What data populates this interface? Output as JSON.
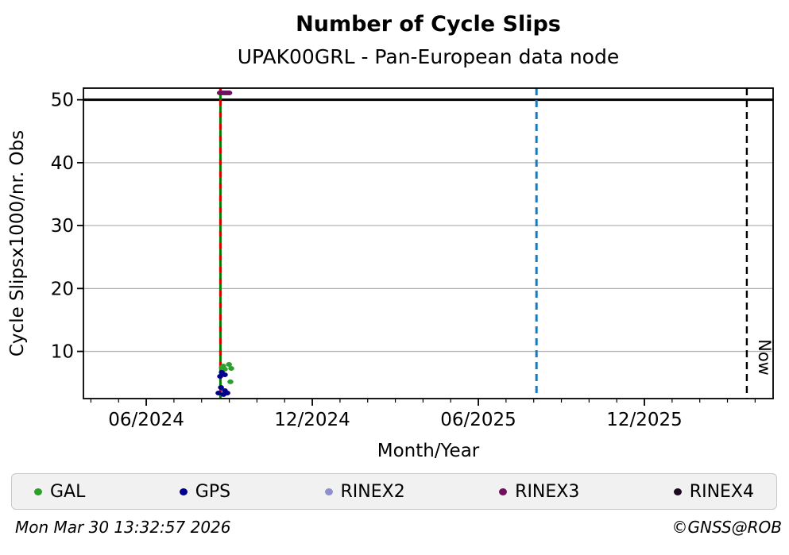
{
  "header": {
    "title": "Number of Cycle Slips",
    "subtitle": "UPAK00GRL - Pan-European data node"
  },
  "footer": {
    "timestamp": "Mon Mar 30 13:32:57 2026",
    "copyright": "©GNSS@ROB"
  },
  "chart_data": {
    "type": "scatter",
    "title": "Number of Cycle Slips",
    "subtitle": "UPAK00GRL - Pan-European data node",
    "xlabel": "Month/Year",
    "ylabel": "Cycle Slipsx1000/nr. Obs",
    "x_unit": "months relative to the 06/2024 tick (1 unit = 1 month)",
    "xlim": [
      -2.27,
      22.65
    ],
    "ylim": [
      2.5,
      51.85
    ],
    "yticks": [
      10,
      20,
      30,
      40,
      50
    ],
    "xticks": [
      {
        "t": 0,
        "label": "06/2024"
      },
      {
        "t": 6,
        "label": "12/2024"
      },
      {
        "t": 12,
        "label": "06/2025"
      },
      {
        "t": 18,
        "label": "12/2025"
      }
    ],
    "minor_xtick_step_months": 1,
    "grid": {
      "horizontal": true,
      "vertical": false,
      "color": "#b3b3b3"
    },
    "threshold_line": {
      "y": 50,
      "color": "#000000",
      "width": 3
    },
    "vlines": [
      {
        "name": "event-line",
        "t": 2.68,
        "date_approx": "late 08/2024",
        "base_color": "#007d00",
        "dash_color": "#d40000",
        "style": "solid-with-dash-overlay",
        "width": 3
      },
      {
        "name": "reference-line",
        "t": 14.1,
        "date_approx": "08/2025",
        "color": "#1f77b4",
        "style": "dashed",
        "width": 3
      },
      {
        "name": "now-line",
        "t": 21.7,
        "date_approx": "30/03/2026",
        "color": "#000000",
        "style": "dashed",
        "width": 2.4,
        "label": "Now"
      }
    ],
    "event_period_note": "all observations cluster around late Aug / early Sep 2024",
    "series": [
      {
        "name": "GAL",
        "color": "#2ca02c",
        "points": [
          [
            2.78,
            7.68
          ],
          [
            2.99,
            7.93
          ],
          [
            3.07,
            7.3
          ],
          [
            2.84,
            7.17
          ],
          [
            2.73,
            7.43
          ],
          [
            3.04,
            5.16
          ]
        ]
      },
      {
        "name": "GPS",
        "color": "#00008b",
        "points": [
          [
            2.73,
            6.67
          ],
          [
            2.84,
            6.29
          ],
          [
            2.67,
            6.04
          ],
          [
            2.7,
            4.27
          ],
          [
            2.61,
            3.39
          ],
          [
            2.79,
            3.14
          ],
          [
            2.93,
            3.39
          ],
          [
            2.84,
            3.77
          ]
        ]
      },
      {
        "name": "RINEX2",
        "color": "#8f8fce",
        "points": []
      },
      {
        "name": "RINEX3",
        "color": "#72105e",
        "points": [
          [
            2.66,
            51.1
          ],
          [
            2.73,
            51.1
          ],
          [
            2.8,
            51.1
          ],
          [
            2.87,
            51.1
          ],
          [
            2.94,
            51.1
          ],
          [
            3.0,
            51.1
          ]
        ]
      },
      {
        "name": "RINEX4",
        "color": "#1c0a20",
        "points": []
      }
    ],
    "legend_position": "bottom"
  }
}
